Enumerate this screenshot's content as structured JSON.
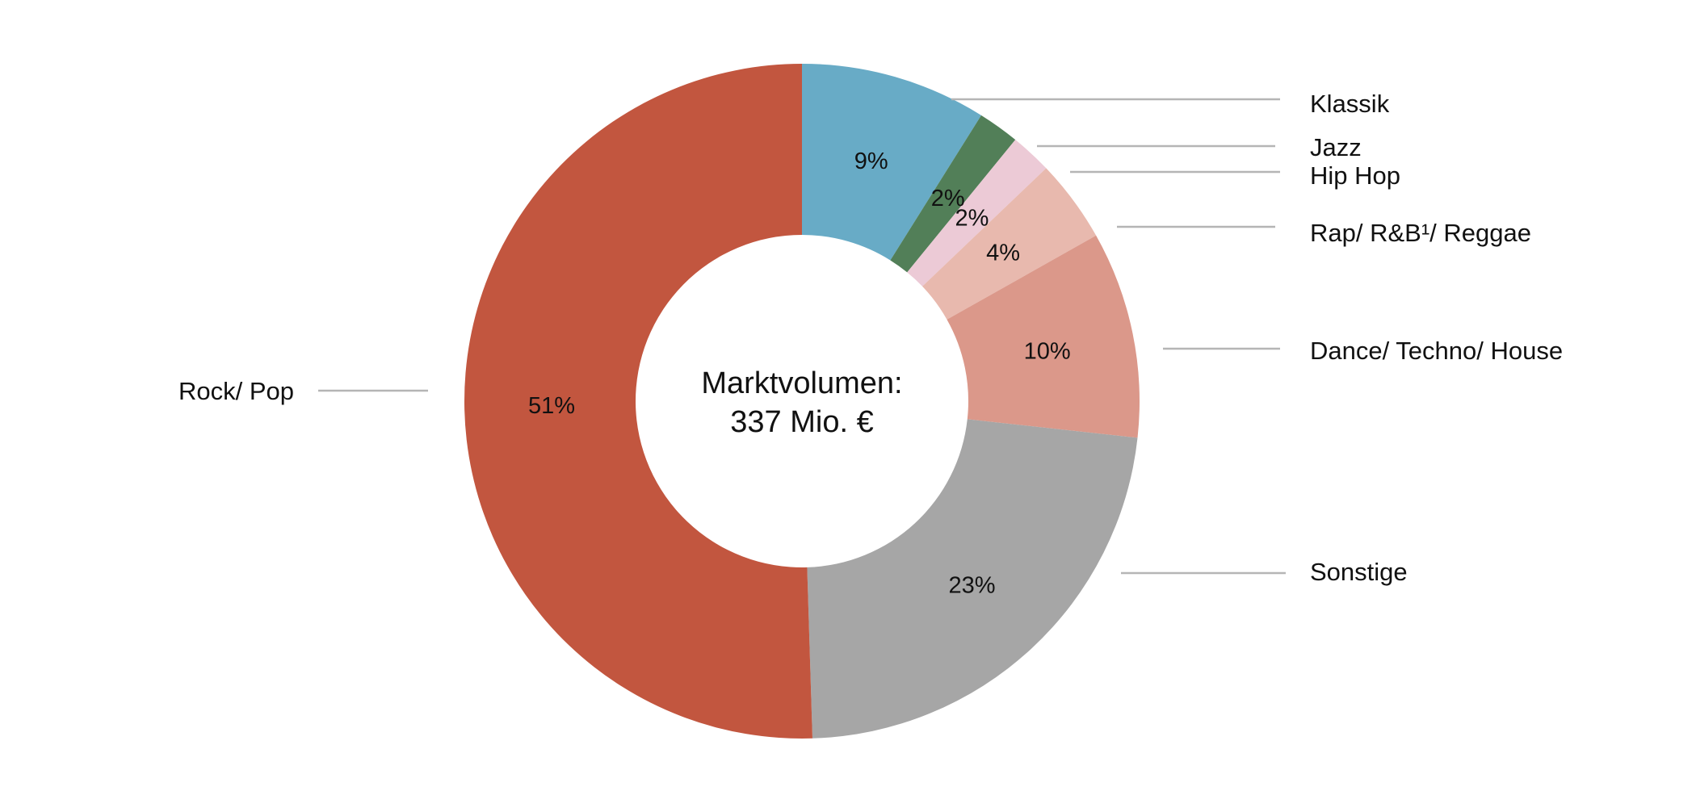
{
  "chart_data": {
    "type": "pie",
    "variant": "donut",
    "center_text": [
      "Marktvolumen:",
      "337 Mio. €"
    ],
    "slices": [
      {
        "label": "Klassik",
        "value": 9,
        "display": "9%",
        "color": "#68abc6"
      },
      {
        "label": "Jazz",
        "value": 2,
        "display": "2%",
        "color": "#527f58"
      },
      {
        "label": "Hip Hop",
        "value": 2,
        "display": "2%",
        "color": "#eccad6"
      },
      {
        "label": "Rap/ R&B¹/ Reggae",
        "value": 4,
        "display": "4%",
        "color": "#e8b9ae"
      },
      {
        "label": "Dance/ Techno/ House",
        "value": 10,
        "display": "10%",
        "color": "#db988a"
      },
      {
        "label": "Sonstige",
        "value": 23,
        "display": "23%",
        "color": "#a6a6a6"
      },
      {
        "label": "Rock/ Pop",
        "value": 51,
        "display": "51%",
        "color": "#c2563f"
      }
    ],
    "start": "top, clockwise",
    "legend_placement": "external labels with leader lines"
  }
}
